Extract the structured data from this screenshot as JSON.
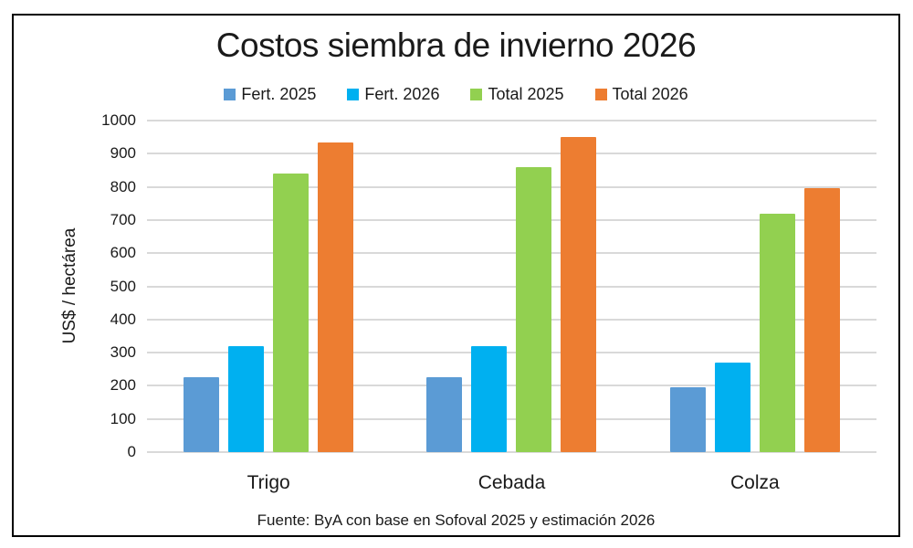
{
  "chart_data": {
    "type": "bar",
    "title": "Costos siembra de invierno 2026",
    "categories": [
      "Trigo",
      "Cebada",
      "Colza"
    ],
    "series": [
      {
        "name": "Fert. 2025",
        "color": "#5B9BD5",
        "values": [
          225,
          225,
          195
        ]
      },
      {
        "name": "Fert. 2026",
        "color": "#00B0F0",
        "values": [
          320,
          320,
          270
        ]
      },
      {
        "name": "Total 2025",
        "color": "#92D050",
        "values": [
          840,
          860,
          720
        ]
      },
      {
        "name": "Total 2026",
        "color": "#ED7D31",
        "values": [
          935,
          950,
          795
        ]
      }
    ],
    "xlabel": "",
    "ylabel": "US$ / hectárea",
    "ylim": [
      0,
      1000
    ],
    "ytick_step": 100,
    "yticks": [
      "0",
      "100",
      "200",
      "300",
      "400",
      "500",
      "600",
      "700",
      "800",
      "900",
      "1000"
    ],
    "grid": true,
    "gridline_color": "#D9D9D9",
    "legend_position": "top",
    "source": "Fuente: ByA con base en Sofoval 2025 y estimación 2026"
  }
}
